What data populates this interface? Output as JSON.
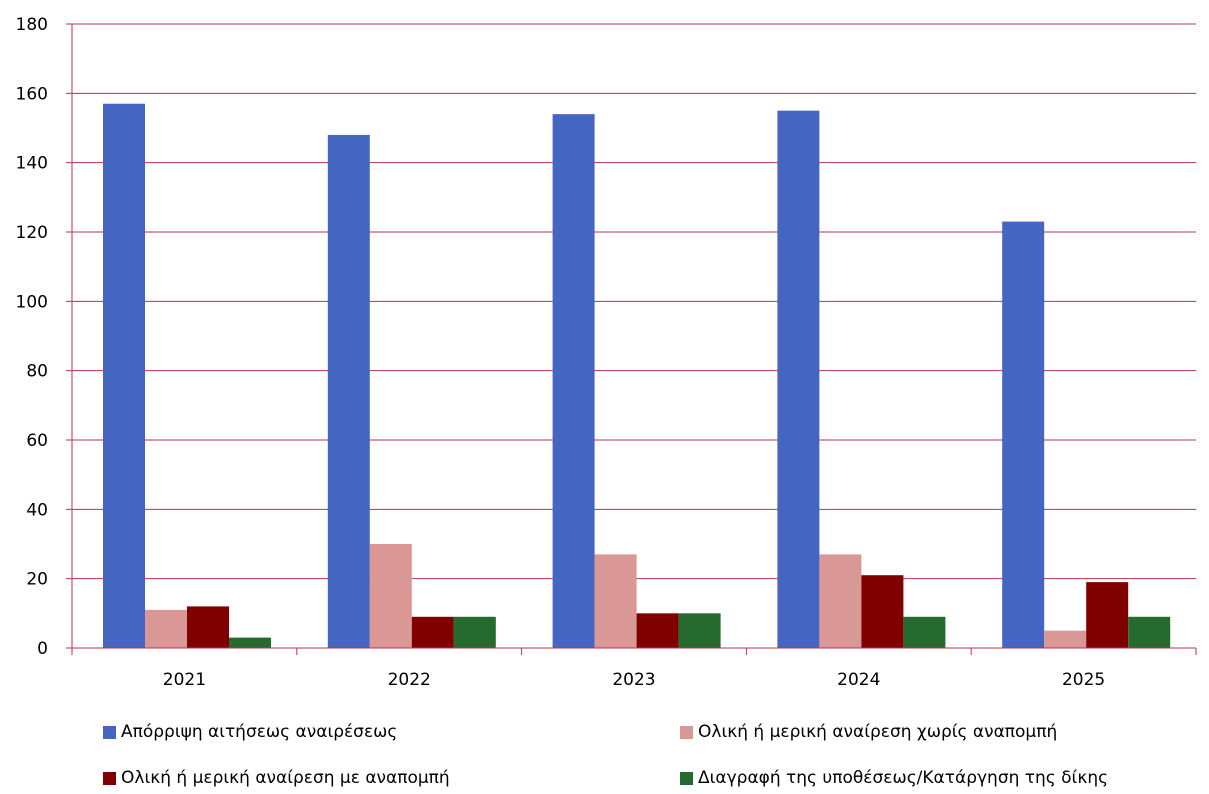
{
  "chart_data": {
    "type": "bar",
    "categories": [
      "2021",
      "2022",
      "2023",
      "2024",
      "2025"
    ],
    "series": [
      {
        "name": "Απόρριψη αιτήσεως αναιρέσεως",
        "color": "#4565c2",
        "values": [
          157,
          148,
          154,
          155,
          123
        ]
      },
      {
        "name": "Ολική ή μερική αναίρεση χωρίς αναπομπή",
        "color": "#d99795",
        "values": [
          11,
          30,
          27,
          27,
          5
        ]
      },
      {
        "name": "Ολική ή μερική αναίρεση με αναπομπή",
        "color": "#800000",
        "values": [
          12,
          9,
          10,
          21,
          19
        ]
      },
      {
        "name": "Διαγραφή της υποθέσεως/Κατάργηση της δίκης",
        "color": "#256b2f",
        "values": [
          3,
          9,
          10,
          9,
          9
        ]
      }
    ],
    "ylim": [
      0,
      180
    ],
    "yticks": [
      0,
      20,
      40,
      60,
      80,
      100,
      120,
      140,
      160,
      180
    ],
    "ytick_labels": [
      "0",
      "20",
      "40",
      "60",
      "80",
      "100",
      "120",
      "140",
      "160",
      "180"
    ],
    "grid": true,
    "grid_color": "#b9354f",
    "axis_color": "#b9354f",
    "legend_position": "bottom",
    "title": "",
    "xlabel": "",
    "ylabel": ""
  }
}
